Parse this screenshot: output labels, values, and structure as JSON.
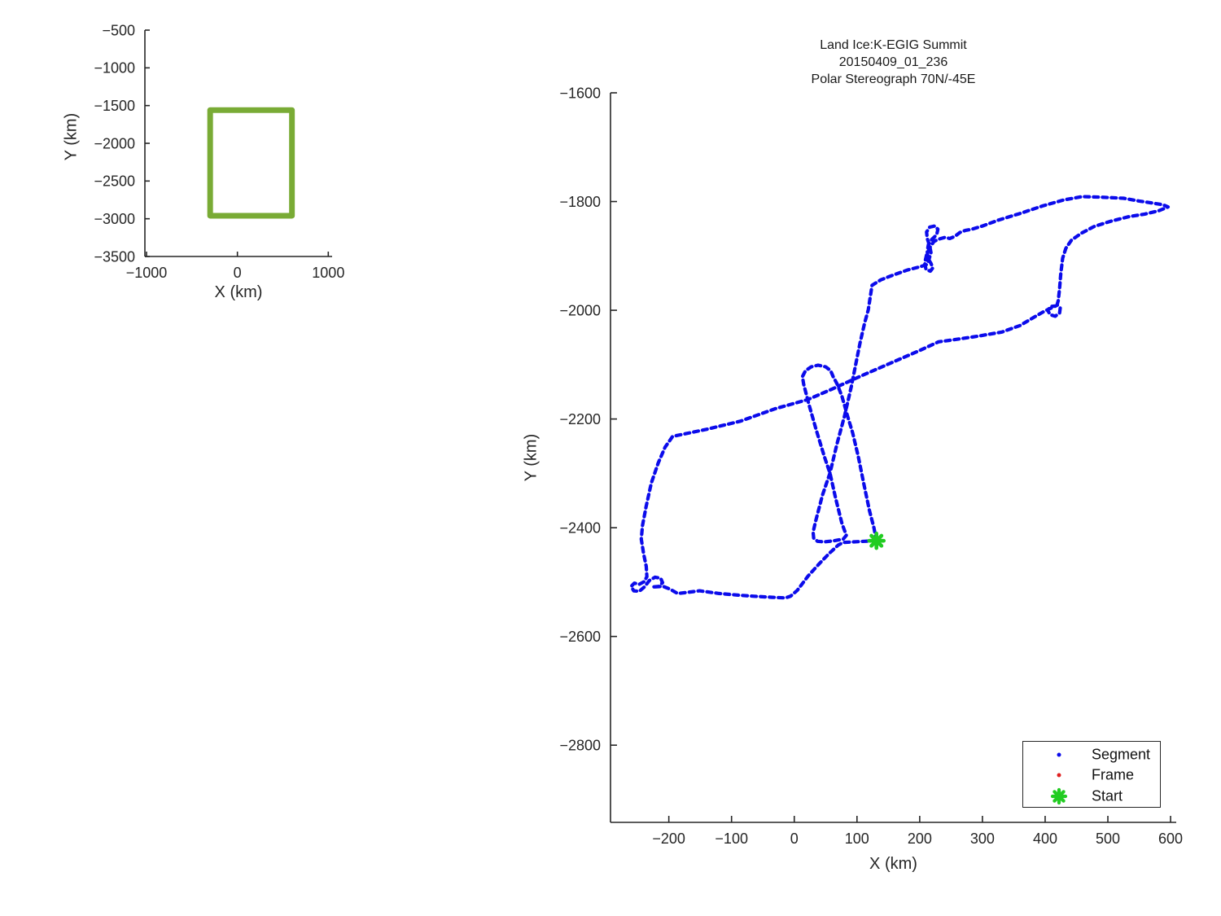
{
  "colors": {
    "track": "#0b0beb",
    "start": "#22cc22",
    "frame": "#e02020",
    "coverage_box": "#79ab35",
    "axis": "#262626",
    "text": "#262626"
  },
  "legend": {
    "items": [
      {
        "label": "Segment",
        "marker": "dot",
        "color": "#0b0beb"
      },
      {
        "label": "Frame",
        "marker": "dot",
        "color": "#e02020"
      },
      {
        "label": "Start",
        "marker": "asterisk",
        "color": "#22cc22"
      }
    ]
  },
  "chart_data": [
    {
      "type": "line",
      "role": "overview-inset",
      "xlabel": "X (km)",
      "ylabel": "Y (km)",
      "x_ticks": [
        -1000,
        0,
        1000
      ],
      "y_ticks": [
        -500,
        -1000,
        -1500,
        -2000,
        -2500,
        -3000,
        -3500
      ],
      "xlim": [
        -1018,
        1042
      ],
      "ylim": [
        -3500,
        -500
      ],
      "grid": false,
      "series": [
        {
          "name": "coverage-box",
          "type": "rect",
          "x": [
            -300,
            600
          ],
          "y": [
            -2960,
            -1560
          ],
          "linewidth": 7
        }
      ]
    },
    {
      "type": "line",
      "role": "flight-track",
      "title": [
        "Land Ice:K-EGIG Summit",
        "20150409_01_236",
        "Polar Stereograph 70N/-45E"
      ],
      "xlabel": "X (km)",
      "ylabel": "Y (km)",
      "x_ticks": [
        -200,
        -100,
        0,
        100,
        200,
        300,
        400,
        500,
        600
      ],
      "y_ticks": [
        -1600,
        -1800,
        -2000,
        -2200,
        -2400,
        -2600,
        -2800
      ],
      "xlim": [
        -293,
        609
      ],
      "ylim": [
        -2942,
        -1600
      ],
      "grid": false,
      "legend_entries": [
        "Segment",
        "Frame",
        "Start"
      ],
      "start_point": [
        131,
        -2424
      ],
      "track": [
        [
          131,
          -2424
        ],
        [
          127,
          -2400
        ],
        [
          120,
          -2369
        ],
        [
          111,
          -2320
        ],
        [
          102,
          -2269
        ],
        [
          93,
          -2225
        ],
        [
          85,
          -2195
        ],
        [
          76,
          -2158
        ],
        [
          68,
          -2135
        ],
        [
          62,
          -2122
        ],
        [
          58,
          -2111
        ],
        [
          50,
          -2104
        ],
        [
          38,
          -2101
        ],
        [
          27,
          -2104
        ],
        [
          18,
          -2111
        ],
        [
          13,
          -2122
        ],
        [
          15,
          -2136
        ],
        [
          24,
          -2176
        ],
        [
          35,
          -2220
        ],
        [
          48,
          -2269
        ],
        [
          57,
          -2300
        ],
        [
          66,
          -2346
        ],
        [
          76,
          -2392
        ],
        [
          83,
          -2414
        ],
        [
          78,
          -2421
        ],
        [
          63,
          -2424
        ],
        [
          48,
          -2426
        ],
        [
          37,
          -2425
        ],
        [
          31,
          -2419
        ],
        [
          30,
          -2408
        ],
        [
          34,
          -2388
        ],
        [
          45,
          -2340
        ],
        [
          57,
          -2299
        ],
        [
          68,
          -2246
        ],
        [
          80,
          -2195
        ],
        [
          91,
          -2140
        ],
        [
          100,
          -2088
        ],
        [
          105,
          -2059
        ],
        [
          112,
          -2024
        ],
        [
          118,
          -1999
        ],
        [
          124,
          -1954
        ],
        [
          138,
          -1944
        ],
        [
          158,
          -1935
        ],
        [
          180,
          -1926
        ],
        [
          200,
          -1920
        ],
        [
          211,
          -1916
        ],
        [
          215,
          -1906
        ],
        [
          218,
          -1894
        ],
        [
          216,
          -1882
        ],
        [
          212,
          -1868
        ],
        [
          211,
          -1856
        ],
        [
          216,
          -1847
        ],
        [
          224,
          -1845
        ],
        [
          229,
          -1851
        ],
        [
          227,
          -1861
        ],
        [
          219,
          -1870
        ],
        [
          214,
          -1879
        ],
        [
          212,
          -1891
        ],
        [
          213,
          -1904
        ],
        [
          218,
          -1914
        ],
        [
          221,
          -1922
        ],
        [
          217,
          -1928
        ],
        [
          210,
          -1925
        ],
        [
          208,
          -1913
        ],
        [
          211,
          -1898
        ],
        [
          217,
          -1883
        ],
        [
          223,
          -1873
        ],
        [
          231,
          -1869
        ],
        [
          240,
          -1866
        ],
        [
          248,
          -1868
        ],
        [
          256,
          -1864
        ],
        [
          264,
          -1857
        ],
        [
          273,
          -1853
        ],
        [
          283,
          -1851
        ],
        [
          300,
          -1845
        ],
        [
          326,
          -1834
        ],
        [
          360,
          -1822
        ],
        [
          396,
          -1808
        ],
        [
          430,
          -1797
        ],
        [
          459,
          -1791
        ],
        [
          490,
          -1792
        ],
        [
          525,
          -1794
        ],
        [
          550,
          -1799
        ],
        [
          572,
          -1803
        ],
        [
          588,
          -1806
        ],
        [
          596,
          -1810
        ],
        [
          581,
          -1817
        ],
        [
          559,
          -1823
        ],
        [
          533,
          -1828
        ],
        [
          505,
          -1836
        ],
        [
          478,
          -1846
        ],
        [
          458,
          -1858
        ],
        [
          442,
          -1871
        ],
        [
          433,
          -1886
        ],
        [
          428,
          -1904
        ],
        [
          425,
          -1932
        ],
        [
          423,
          -1960
        ],
        [
          421,
          -1982
        ],
        [
          419,
          -1990
        ],
        [
          424,
          -1996
        ],
        [
          423,
          -2005
        ],
        [
          416,
          -2011
        ],
        [
          408,
          -2008
        ],
        [
          404,
          -2000
        ],
        [
          409,
          -1993
        ],
        [
          417,
          -1992
        ],
        [
          400,
          -2001
        ],
        [
          382,
          -2013
        ],
        [
          360,
          -2028
        ],
        [
          331,
          -2040
        ],
        [
          291,
          -2048
        ],
        [
          256,
          -2054
        ],
        [
          230,
          -2058
        ],
        [
          196,
          -2076
        ],
        [
          152,
          -2098
        ],
        [
          108,
          -2120
        ],
        [
          60,
          -2145
        ],
        [
          22,
          -2164
        ],
        [
          -30,
          -2181
        ],
        [
          -86,
          -2204
        ],
        [
          -140,
          -2219
        ],
        [
          -194,
          -2232
        ],
        [
          -206,
          -2252
        ],
        [
          -217,
          -2281
        ],
        [
          -228,
          -2318
        ],
        [
          -236,
          -2360
        ],
        [
          -242,
          -2396
        ],
        [
          -244,
          -2421
        ],
        [
          -240,
          -2449
        ],
        [
          -236,
          -2471
        ],
        [
          -235,
          -2490
        ],
        [
          -239,
          -2499
        ],
        [
          -247,
          -2504
        ],
        [
          -255,
          -2502
        ],
        [
          -260,
          -2508
        ],
        [
          -256,
          -2516
        ],
        [
          -247,
          -2517
        ],
        [
          -239,
          -2509
        ],
        [
          -231,
          -2497
        ],
        [
          -222,
          -2491
        ],
        [
          -213,
          -2493
        ],
        [
          -210,
          -2501
        ],
        [
          -216,
          -2508
        ],
        [
          -226,
          -2509
        ],
        [
          -209,
          -2508
        ],
        [
          -198,
          -2513
        ],
        [
          -186,
          -2521
        ],
        [
          -171,
          -2519
        ],
        [
          -151,
          -2516
        ],
        [
          -120,
          -2521
        ],
        [
          -90,
          -2524
        ],
        [
          -64,
          -2526
        ],
        [
          -35,
          -2528
        ],
        [
          -14,
          -2529
        ],
        [
          -6,
          -2526
        ],
        [
          5,
          -2515
        ],
        [
          22,
          -2489
        ],
        [
          40,
          -2466
        ],
        [
          56,
          -2447
        ],
        [
          70,
          -2432
        ],
        [
          78,
          -2427
        ],
        [
          95,
          -2426
        ],
        [
          112,
          -2425
        ],
        [
          128,
          -2424
        ],
        [
          131,
          -2424
        ]
      ]
    }
  ]
}
